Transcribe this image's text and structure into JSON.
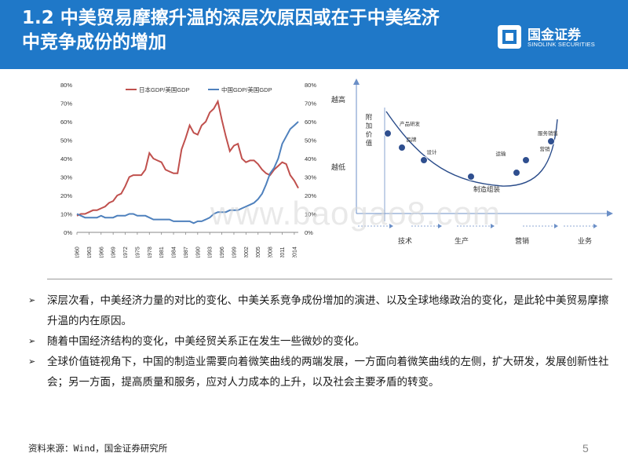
{
  "header": {
    "title_line1": "1.2 中美贸易摩擦升温的深层次原因或在于中美经济",
    "title_line2": "中竞争成份的增加",
    "logo_name": "国金证券",
    "logo_sub": "SINOLINK SECURITIES",
    "accent_color": "#1f78c8"
  },
  "chart_data": [
    {
      "type": "line",
      "x": [
        1960,
        1961,
        1962,
        1963,
        1964,
        1965,
        1966,
        1967,
        1968,
        1969,
        1970,
        1971,
        1972,
        1973,
        1974,
        1975,
        1976,
        1977,
        1978,
        1979,
        1980,
        1981,
        1982,
        1983,
        1984,
        1985,
        1986,
        1987,
        1988,
        1989,
        1990,
        1991,
        1992,
        1993,
        1994,
        1995,
        1996,
        1997,
        1998,
        1999,
        2000,
        2001,
        2002,
        2003,
        2004,
        2005,
        2006,
        2007,
        2008,
        2009,
        2010,
        2011,
        2012,
        2013,
        2014,
        2015
      ],
      "x_tick_labels": [
        "1960",
        "1963",
        "1966",
        "1969",
        "1972",
        "1975",
        "1978",
        "1981",
        "1984",
        "1987",
        "1990",
        "1993",
        "1996",
        "1999",
        "2002",
        "2005",
        "2008",
        "2011",
        "2014"
      ],
      "y_tick_labels_left": [
        "0%",
        "10%",
        "20%",
        "30%",
        "40%",
        "50%",
        "60%",
        "70%",
        "80%"
      ],
      "y_tick_labels_right": [
        "0%",
        "10%",
        "20%",
        "30%",
        "40%",
        "50%",
        "60%",
        "70%",
        "80%"
      ],
      "ylim": [
        0,
        80
      ],
      "legend_position": "top",
      "series": [
        {
          "name": "日本GDP/美国GDP",
          "color": "#c0504d",
          "axis": "left",
          "values": [
            9,
            10,
            10,
            11,
            12,
            12,
            13,
            14,
            16,
            17,
            20,
            21,
            25,
            30,
            31,
            31,
            31,
            34,
            43,
            40,
            39,
            38,
            34,
            33,
            32,
            32,
            45,
            51,
            58,
            54,
            53,
            58,
            60,
            65,
            67,
            71,
            61,
            52,
            44,
            47,
            48,
            40,
            38,
            39,
            39,
            37,
            34,
            32,
            31,
            34,
            36,
            38,
            37,
            31,
            28,
            24
          ]
        },
        {
          "name": "中国GDP/美国GDP",
          "color": "#4f81bd",
          "axis": "right",
          "values": [
            10,
            9,
            8,
            8,
            8,
            8,
            9,
            8,
            8,
            8,
            9,
            9,
            9,
            10,
            10,
            9,
            9,
            9,
            8,
            7,
            7,
            7,
            7,
            7,
            6,
            6,
            6,
            6,
            6,
            5,
            6,
            6,
            7,
            8,
            10,
            11,
            11,
            11,
            12,
            12,
            12,
            13,
            14,
            15,
            16,
            18,
            21,
            26,
            32,
            35,
            40,
            48,
            52,
            56,
            58,
            60
          ]
        }
      ]
    },
    {
      "type": "scatter",
      "smile_curve": true,
      "y_top_label": "越高",
      "y_bottom_label": "越低",
      "y_axis_title": "附加价值",
      "x_segment_labels": [
        "技术",
        "生产",
        "营销",
        "业务"
      ],
      "points": [
        {
          "label": "产品研发",
          "position": 1
        },
        {
          "label": "品牌",
          "position": 2
        },
        {
          "label": "设计",
          "position": 3
        },
        {
          "label": "制造组装",
          "position": 4
        },
        {
          "label": "运输",
          "position": 5
        },
        {
          "label": "营销",
          "position": 6
        },
        {
          "label": "服务销售",
          "position": 7
        }
      ]
    }
  ],
  "watermark": "www.baogao8.com",
  "bullets": [
    {
      "mark": "➢",
      "text": "深层次看，中美经济力量的对比的变化、中美关系竞争成份增加的演进、以及全球地缘政治的变化，是此轮中美贸易摩擦升温的内在原因。"
    },
    {
      "mark": "➢",
      "text": "随着中国经济结构的变化，中美经贸关系正在发生一些微妙的变化。"
    },
    {
      "mark": "➢",
      "text": "全球价值链视角下，中国的制造业需要向着微笑曲线的两端发展，一方面向着微笑曲线的左侧，扩大研发，发展创新性社会；另一方面，提高质量和服务，应对人力成本的上升，以及社会主要矛盾的转变。"
    }
  ],
  "footer": {
    "source": "资料来源：Wind，国金证券研究所",
    "page_number": "5"
  }
}
